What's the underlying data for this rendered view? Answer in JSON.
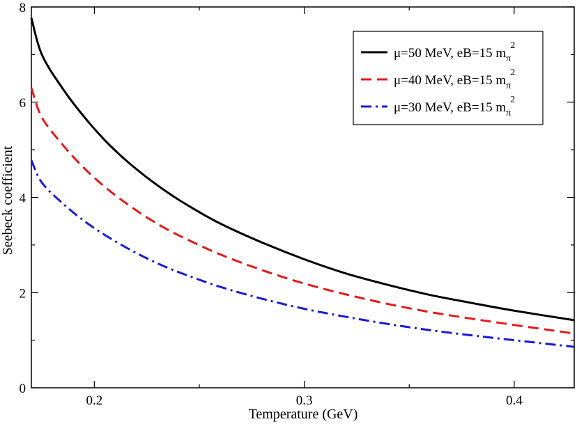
{
  "chart_data": {
    "type": "line",
    "title": "",
    "xlabel": "Temperature (GeV)",
    "ylabel": "Seebeck coefficient",
    "xlim": [
      0.17,
      0.4286
    ],
    "ylim": [
      0,
      8
    ],
    "xticks": [
      0.2,
      0.3,
      0.4
    ],
    "xtick_labels": [
      "0.2",
      "0.3",
      "0.4"
    ],
    "yticks": [
      0,
      2,
      4,
      6,
      8
    ],
    "ytick_labels": [
      "0",
      "2",
      "4",
      "6",
      "8"
    ],
    "grid": false,
    "legend_position": "top-right",
    "x": [
      0.17,
      0.175,
      0.185,
      0.195,
      0.205,
      0.215,
      0.225,
      0.235,
      0.245,
      0.26,
      0.28,
      0.3,
      0.32,
      0.34,
      0.36,
      0.38,
      0.4,
      0.4286
    ],
    "series": [
      {
        "name": "μ=50 MeV, eB=15 m",
        "name_sub": "π",
        "name_sup": "2",
        "color": "#000000",
        "dash": "solid",
        "values": [
          7.77,
          7.0,
          6.28,
          5.7,
          5.2,
          4.78,
          4.42,
          4.1,
          3.82,
          3.45,
          3.05,
          2.7,
          2.4,
          2.16,
          1.95,
          1.78,
          1.62,
          1.42
        ]
      },
      {
        "name": "μ=40 MeV, eB=15 m",
        "name_sub": "π",
        "name_sup": "2",
        "color": "#e8191b",
        "dash": "long-dash",
        "values": [
          6.3,
          5.68,
          5.1,
          4.62,
          4.22,
          3.88,
          3.58,
          3.32,
          3.1,
          2.8,
          2.47,
          2.19,
          1.96,
          1.76,
          1.59,
          1.45,
          1.32,
          1.14
        ]
      },
      {
        "name": "μ=30 MeV, eB=15 m",
        "name_sub": "π",
        "name_sup": "2",
        "color": "#1a1adb",
        "dash": "dash-dot",
        "values": [
          4.78,
          4.31,
          3.87,
          3.51,
          3.21,
          2.95,
          2.72,
          2.52,
          2.35,
          2.12,
          1.87,
          1.66,
          1.49,
          1.34,
          1.21,
          1.1,
          1.0,
          0.86
        ]
      }
    ]
  }
}
